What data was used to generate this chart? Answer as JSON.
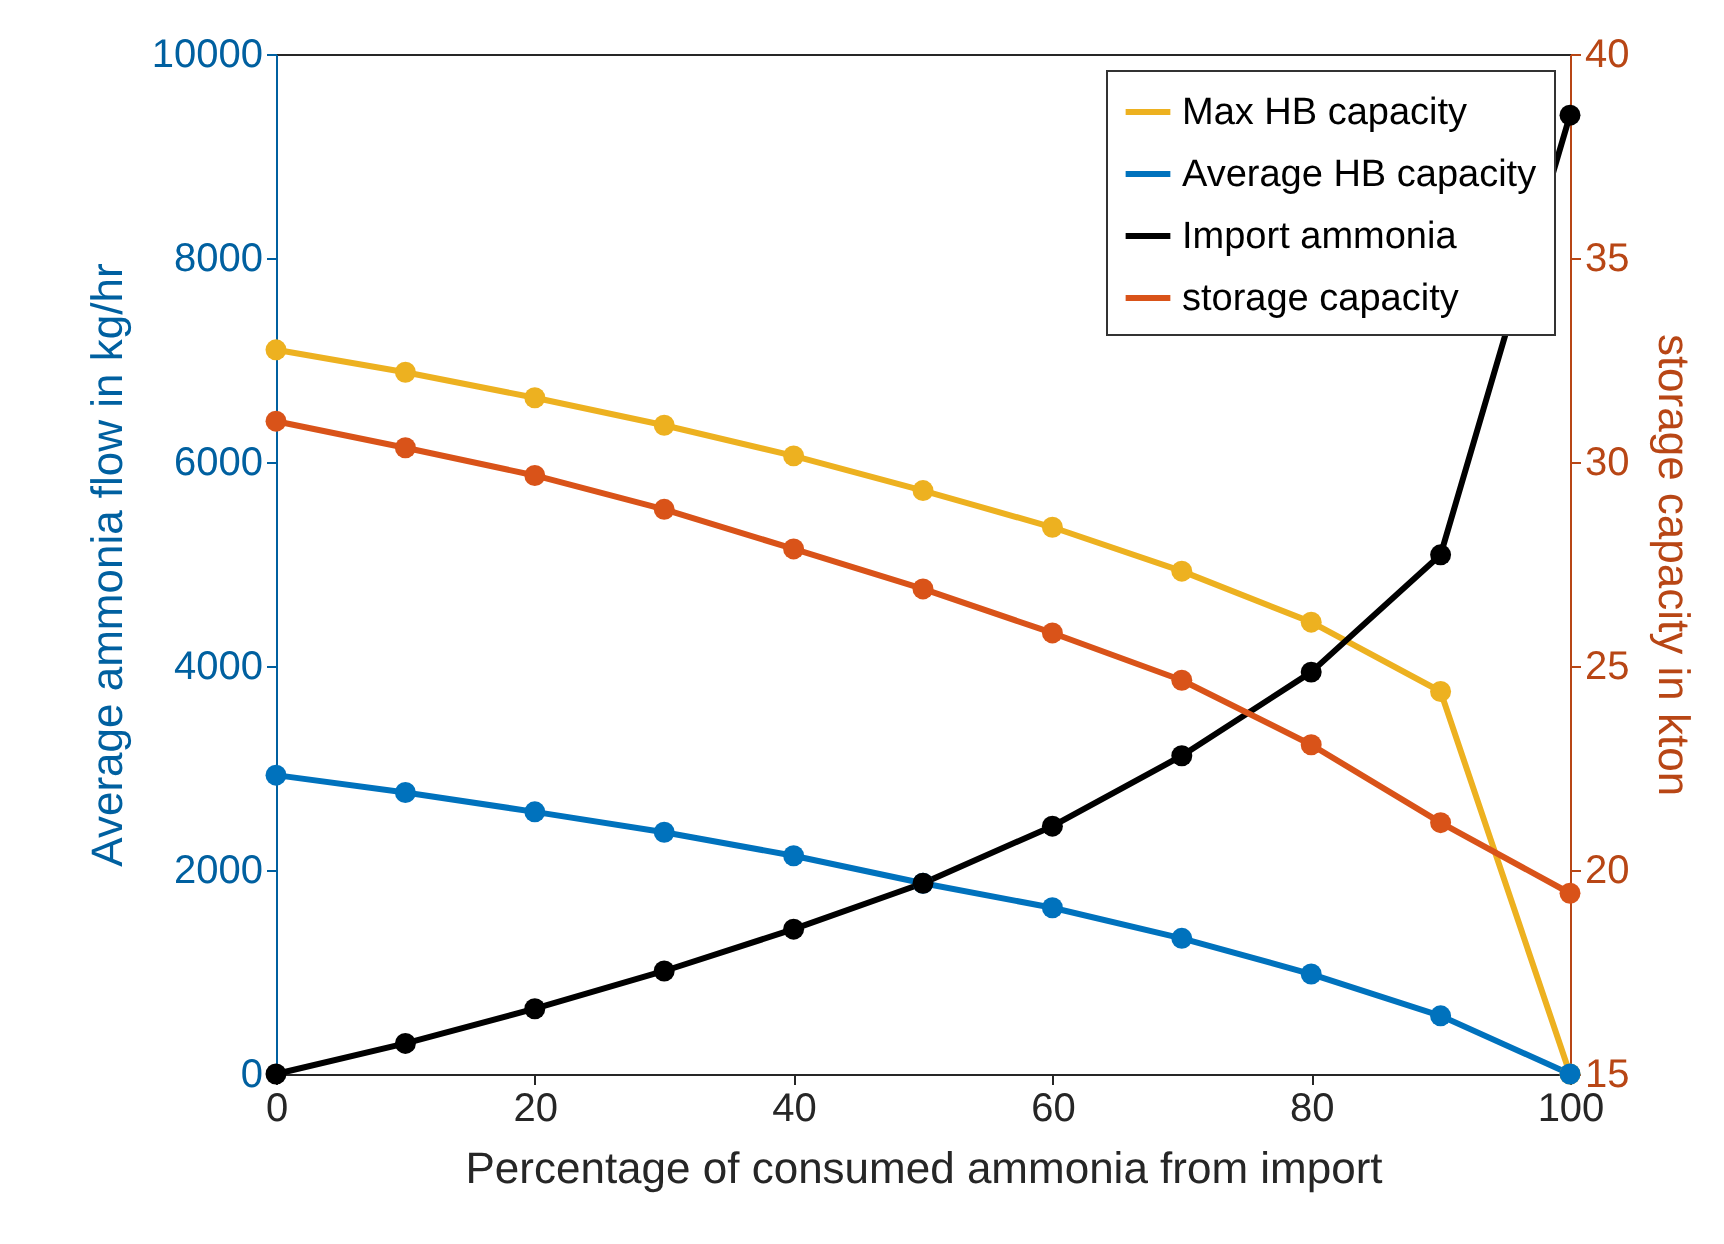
{
  "chart_data": {
    "type": "line",
    "xlabel": "Percentage of consumed ammonia from import",
    "ylabel": "Average ammonia flow in kg/hr",
    "y2label": "storage capacity in kton",
    "x": [
      0,
      10,
      20,
      30,
      40,
      50,
      60,
      70,
      80,
      90,
      100
    ],
    "series": [
      {
        "name": "Max HB capacity",
        "color": "#edb120",
        "values": [
          7100,
          6880,
          6630,
          6360,
          6060,
          5720,
          5360,
          4930,
          4430,
          3750,
          0
        ]
      },
      {
        "name": "Average HB capacity",
        "color": "#0072bd",
        "values": [
          2930,
          2760,
          2570,
          2370,
          2140,
          1870,
          1630,
          1330,
          980,
          570,
          0
        ]
      },
      {
        "name": "Import ammonia",
        "color": "#000000",
        "values": [
          0,
          300,
          640,
          1010,
          1420,
          1870,
          2430,
          3120,
          3940,
          5090,
          9400
        ]
      },
      {
        "name": "storage capacity",
        "color": "#d95319",
        "axis": "y2",
        "values": [
          31.0,
          30.35,
          29.67,
          28.84,
          27.87,
          26.89,
          25.81,
          24.65,
          23.07,
          21.16,
          19.43
        ]
      }
    ],
    "xlim": [
      0,
      100
    ],
    "xticks": [
      0,
      20,
      40,
      60,
      80,
      100
    ],
    "ylim": [
      0,
      10000
    ],
    "yticks": [
      0,
      2000,
      4000,
      6000,
      8000,
      10000
    ],
    "y2lim": [
      15,
      40
    ],
    "y2ticks": [
      15,
      20,
      25,
      30,
      35,
      40
    ],
    "grid": false,
    "legend": "top right",
    "marker": "circle",
    "line_style": "solid"
  }
}
